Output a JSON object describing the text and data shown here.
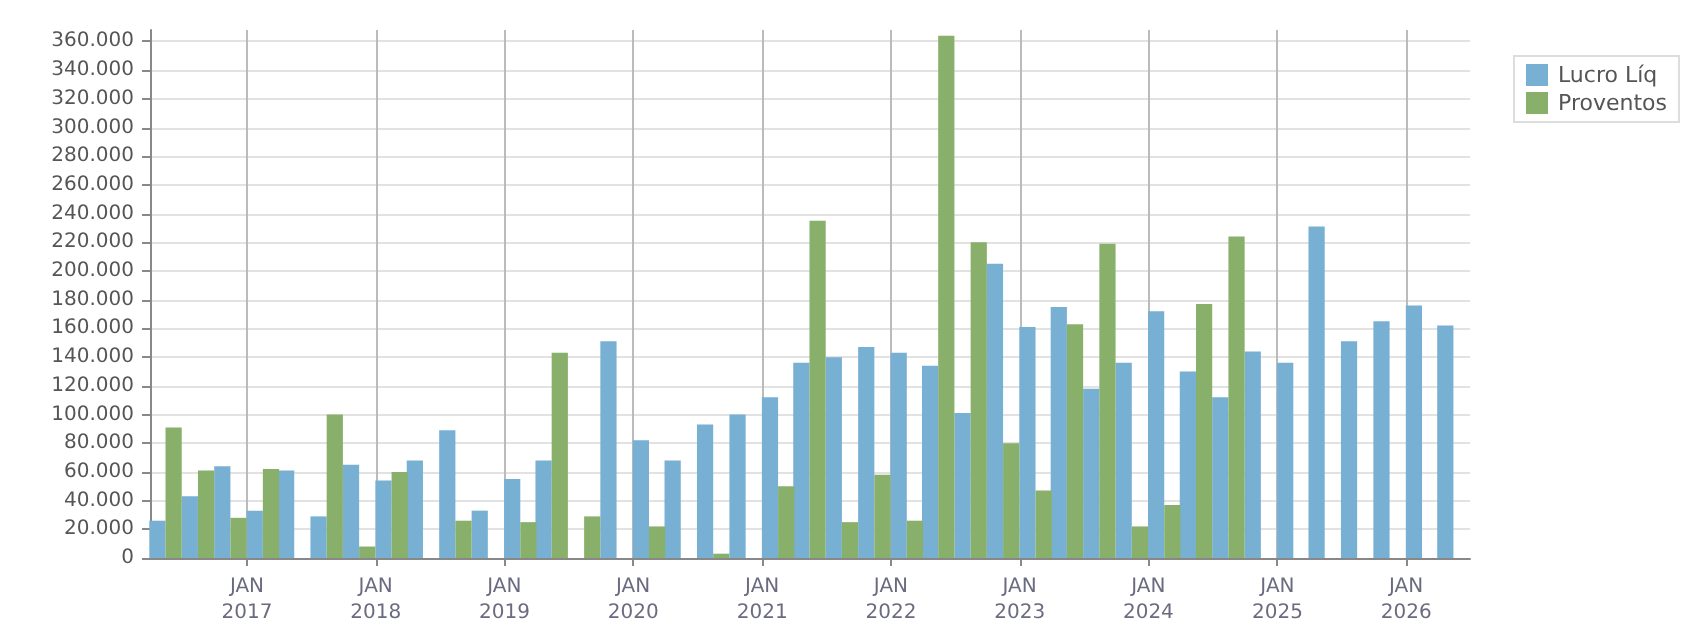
{
  "chart_data": {
    "type": "bar",
    "x": [
      "2016-05-15",
      "2016-08-15",
      "2016-11-15",
      "2017-02-15",
      "2017-05-15",
      "2017-08-15",
      "2017-11-15",
      "2018-02-15",
      "2018-05-15",
      "2018-08-15",
      "2018-11-15",
      "2019-02-15",
      "2019-05-15",
      "2019-08-15",
      "2019-11-15",
      "2020-02-15",
      "2020-05-15",
      "2020-08-15",
      "2020-11-15",
      "2021-02-15",
      "2021-05-15",
      "2021-08-15",
      "2021-11-15",
      "2022-02-15",
      "2022-05-15",
      "2022-08-15",
      "2022-11-15",
      "2023-02-15",
      "2023-05-15",
      "2023-08-15",
      "2023-11-15",
      "2024-02-15",
      "2024-05-15",
      "2024-08-15",
      "2024-11-15",
      "2025-02-15",
      "2025-05-15",
      "2025-08-15",
      "2025-11-15",
      "2026-02-15",
      "2026-05-15"
    ],
    "series": [
      {
        "name": "Lucro Líq",
        "color": "#77b0d3",
        "values": [
          26000,
          43000,
          64000,
          33000,
          61000,
          29000,
          65000,
          54000,
          68000,
          89000,
          33000,
          55000,
          68000,
          null,
          151000,
          82000,
          68000,
          93000,
          100000,
          112000,
          136000,
          140000,
          147000,
          143000,
          134000,
          101000,
          205000,
          161000,
          175000,
          118000,
          136000,
          172000,
          130000,
          112000,
          144000,
          136000,
          231000,
          151000,
          165000,
          176000,
          162000
        ]
      },
      {
        "name": "Proventos",
        "color": "#88b06a",
        "values": [
          91000,
          61000,
          28000,
          62000,
          null,
          100000,
          8000,
          60000,
          null,
          26000,
          null,
          25000,
          143000,
          29000,
          null,
          22000,
          null,
          3000,
          null,
          50000,
          235000,
          25000,
          58000,
          26000,
          364000,
          220000,
          80000,
          47000,
          163000,
          219000,
          22000,
          37000,
          177000,
          224000,
          null,
          null,
          null,
          null,
          null,
          null,
          null
        ]
      }
    ],
    "xlim": [
      "2016-04",
      "2026-07"
    ],
    "xticks": [
      {
        "value": "2017-01",
        "label": "JAN\n2017"
      },
      {
        "value": "2018-01",
        "label": "JAN\n2018"
      },
      {
        "value": "2019-01",
        "label": "JAN\n2019"
      },
      {
        "value": "2020-01",
        "label": "JAN\n2020"
      },
      {
        "value": "2021-01",
        "label": "JAN\n2021"
      },
      {
        "value": "2022-01",
        "label": "JAN\n2022"
      },
      {
        "value": "2023-01",
        "label": "JAN\n2023"
      },
      {
        "value": "2024-01",
        "label": "JAN\n2024"
      },
      {
        "value": "2025-01",
        "label": "JAN\n2025"
      },
      {
        "value": "2026-01",
        "label": "JAN\n2026"
      }
    ],
    "ylim": [
      0,
      368000
    ],
    "yticks": [
      0,
      {
        "value": 20000,
        "label": "20.000"
      },
      {
        "value": 40000,
        "label": "40.000"
      },
      {
        "value": 60000,
        "label": "60.000"
      },
      {
        "value": 80000,
        "label": "80.000"
      },
      {
        "value": 100000,
        "label": "100.000"
      },
      {
        "value": 120000,
        "label": "120.000"
      },
      {
        "value": 140000,
        "label": "140.000"
      },
      {
        "value": 160000,
        "label": "160.000"
      },
      {
        "value": 180000,
        "label": "180.000"
      },
      {
        "value": 200000,
        "label": "200.000"
      },
      {
        "value": 220000,
        "label": "220.000"
      },
      {
        "value": 240000,
        "label": "240.000"
      },
      {
        "value": 260000,
        "label": "260.000"
      },
      {
        "value": 280000,
        "label": "280.000"
      },
      {
        "value": 300000,
        "label": "300.000"
      },
      {
        "value": 320000,
        "label": "320.000"
      },
      {
        "value": 340000,
        "label": "340.000"
      },
      {
        "value": 360000,
        "label": "360.000"
      }
    ],
    "grid": true,
    "legend": "top right"
  }
}
